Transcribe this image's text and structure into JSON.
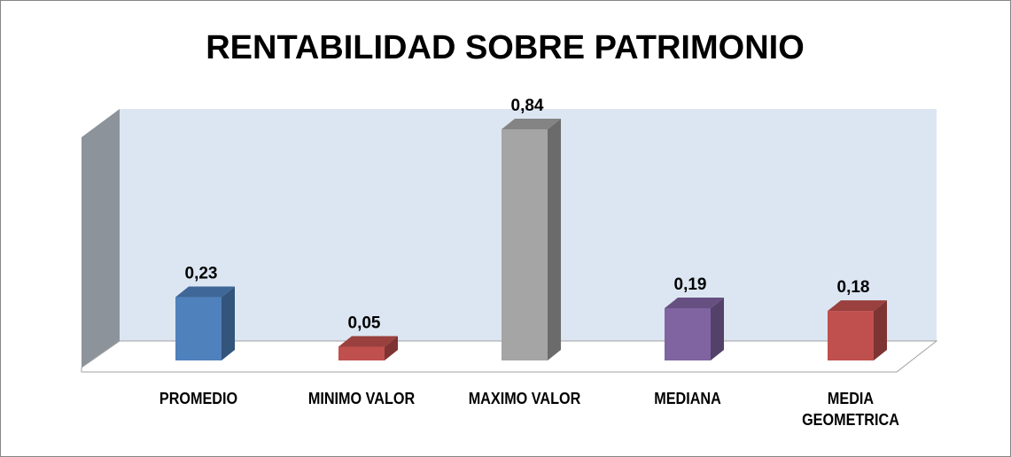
{
  "chart_data": {
    "type": "bar3d",
    "title": "RENTABILIDAD SOBRE PATRIMONIO",
    "categories": [
      "PROMEDIO",
      "MINIMO VALOR",
      "MAXIMO VALOR",
      "MEDIANA",
      "MEDIA GEOMETRICA"
    ],
    "values": [
      0.23,
      0.05,
      0.84,
      0.19,
      0.18
    ],
    "value_labels": [
      "0,23",
      "0,05",
      "0,84",
      "0,19",
      "0,18"
    ],
    "colors": [
      "#4f81bd",
      "#c0504d",
      "#a5a5a5",
      "#8064a2",
      "#c0504d"
    ],
    "ylim": [
      0,
      1
    ]
  }
}
